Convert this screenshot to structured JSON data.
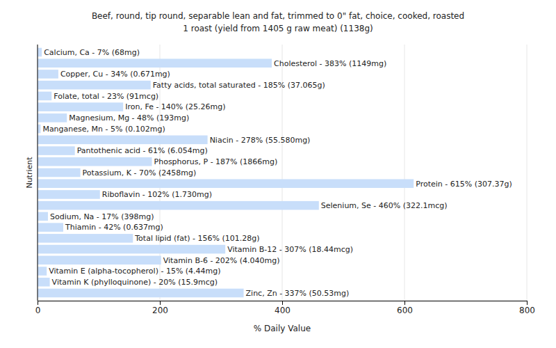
{
  "chart_data": {
    "type": "bar",
    "orientation": "horizontal",
    "title": "Beef, round, tip round, separable lean and fat, trimmed to 0\" fat, choice, cooked, roasted",
    "subtitle": "1 roast (yield from 1405 g raw meat) (1138g)",
    "x_label": "% Daily Value",
    "y_label": "Nutrient",
    "categories": [
      "Calcium, Ca - 7% (68mg)",
      "Cholesterol - 383% (1149mg)",
      "Copper, Cu - 34% (0.671mg)",
      "Fatty acids, total saturated - 185% (37.065g)",
      "Folate, total - 23% (91mcg)",
      "Iron, Fe - 140% (25.26mg)",
      "Magnesium, Mg - 48% (193mg)",
      "Manganese, Mn - 5% (0.102mg)",
      "Niacin - 278% (55.580mg)",
      "Pantothenic acid - 61% (6.054mg)",
      "Phosphorus, P - 187% (1866mg)",
      "Potassium, K - 70% (2458mg)",
      "Protein - 615% (307.37g)",
      "Riboflavin - 102% (1.730mg)",
      "Selenium, Se - 460% (322.1mcg)",
      "Sodium, Na - 17% (398mg)",
      "Thiamin - 42% (0.637mg)",
      "Total lipid (fat) - 156% (101.28g)",
      "Vitamin B-12 - 307% (18.44mcg)",
      "Vitamin B-6 - 202% (4.040mg)",
      "Vitamin E (alpha-tocopherol) - 15% (4.44mg)",
      "Vitamin K (phylloquinone) - 20% (15.9mcg)",
      "Zinc, Zn - 337% (50.53mg)"
    ],
    "values": [
      7,
      383,
      34,
      185,
      23,
      140,
      48,
      5,
      278,
      61,
      187,
      70,
      615,
      102,
      460,
      17,
      42,
      156,
      307,
      202,
      15,
      20,
      337
    ],
    "color": "#c8defa",
    "xlim": [
      0,
      800
    ],
    "xticks": [
      0,
      200,
      400,
      600,
      800
    ],
    "grid": true,
    "tick_labels": "x"
  }
}
